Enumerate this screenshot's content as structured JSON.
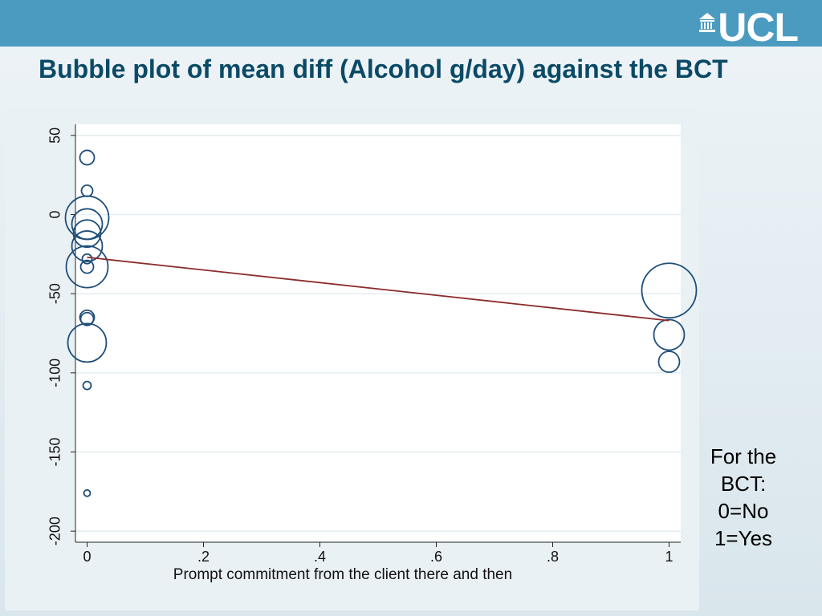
{
  "header": {
    "logo_text": "UCL",
    "logo_icon": "portico-icon",
    "bar_color": "#4a9bbf"
  },
  "slide": {
    "title": "Bubble plot of mean diff (Alcohol g/day) against the BCT"
  },
  "legend_note": {
    "lines": [
      "For the",
      "BCT:",
      "0=No",
      "1=Yes"
    ]
  },
  "chart_data": {
    "type": "scatter",
    "variant": "bubble",
    "title": "",
    "xlabel": "Prompt commitment from the client there and then",
    "ylabel": "",
    "xlim": [
      -0.02,
      1.02
    ],
    "ylim": [
      -207,
      57
    ],
    "x_ticks": [
      0,
      0.2,
      0.4,
      0.6,
      0.8,
      1
    ],
    "x_tick_labels": [
      "0",
      ".2",
      ".4",
      ".6",
      ".8",
      "1"
    ],
    "y_ticks": [
      50,
      0,
      -50,
      -100,
      -150,
      -200
    ],
    "y_tick_labels": [
      "50",
      "0",
      "-50",
      "-100",
      "-150",
      "-200"
    ],
    "grid": true,
    "grid_axis": "y",
    "marker_color": "#1f4e79",
    "fit_line_color": "#8b2b2b",
    "points": [
      {
        "x": 0,
        "y": 36,
        "size": 9
      },
      {
        "x": 0,
        "y": 15,
        "size": 7
      },
      {
        "x": 0,
        "y": -2,
        "size": 27
      },
      {
        "x": 0,
        "y": -6,
        "size": 19
      },
      {
        "x": 0,
        "y": -12,
        "size": 17
      },
      {
        "x": 0,
        "y": -20,
        "size": 19
      },
      {
        "x": 0,
        "y": -28,
        "size": 6
      },
      {
        "x": 0,
        "y": -33,
        "size": 26
      },
      {
        "x": 0,
        "y": -33,
        "size": 8
      },
      {
        "x": 0,
        "y": -65,
        "size": 9
      },
      {
        "x": 0,
        "y": -66,
        "size": 8
      },
      {
        "x": 0,
        "y": -81,
        "size": 24
      },
      {
        "x": 0,
        "y": -108,
        "size": 5
      },
      {
        "x": 0,
        "y": -176,
        "size": 4
      },
      {
        "x": 1,
        "y": -48,
        "size": 34
      },
      {
        "x": 1,
        "y": -76,
        "size": 19
      },
      {
        "x": 1,
        "y": -93,
        "size": 13
      }
    ],
    "fit_line": {
      "x": [
        0,
        1
      ],
      "y": [
        -27,
        -67
      ]
    }
  }
}
